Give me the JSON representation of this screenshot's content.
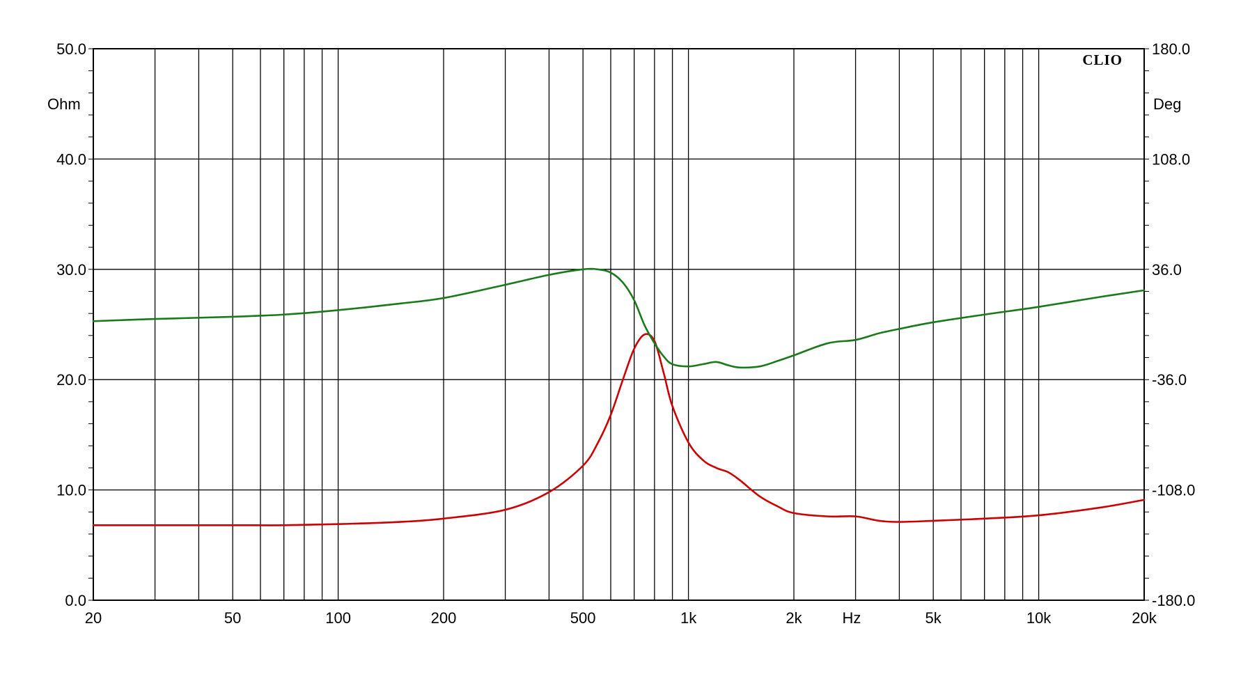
{
  "chart_data": {
    "type": "line",
    "brand": "CLIO",
    "x_scale": "log",
    "xlim": [
      20,
      20000
    ],
    "ylim_left": [
      0,
      50
    ],
    "ylim_right": [
      -180,
      180
    ],
    "left_unit": "Ohm",
    "right_unit": "Deg",
    "x_unit": "Hz",
    "grid": true,
    "x_ticks": [
      {
        "value": 20,
        "label": "20"
      },
      {
        "value": 50,
        "label": "50"
      },
      {
        "value": 100,
        "label": "100"
      },
      {
        "value": 200,
        "label": "200"
      },
      {
        "value": 500,
        "label": "500"
      },
      {
        "value": 1000,
        "label": "1k"
      },
      {
        "value": 2000,
        "label": "2k"
      },
      {
        "value": 5000,
        "label": "5k"
      },
      {
        "value": 10000,
        "label": "10k"
      },
      {
        "value": 20000,
        "label": "20k"
      }
    ],
    "left_ticks": [
      {
        "value": 0,
        "label": "0.0"
      },
      {
        "value": 10,
        "label": "10.0"
      },
      {
        "value": 20,
        "label": "20.0"
      },
      {
        "value": 30,
        "label": "30.0"
      },
      {
        "value": 40,
        "label": "40.0"
      },
      {
        "value": 50,
        "label": "50.0"
      }
    ],
    "right_ticks": [
      {
        "value": -180,
        "label": "-180.0"
      },
      {
        "value": -108,
        "label": "-108.0"
      },
      {
        "value": -36,
        "label": "-36.0"
      },
      {
        "value": 36,
        "label": "36.0"
      },
      {
        "value": 108,
        "label": "108.0"
      },
      {
        "value": 180,
        "label": "180.0"
      }
    ],
    "series": [
      {
        "axis": "left",
        "color": "#cc0000",
        "x": [
          20,
          30,
          50,
          70,
          100,
          150,
          200,
          300,
          400,
          500,
          550,
          600,
          650,
          700,
          750,
          800,
          850,
          900,
          1000,
          1100,
          1200,
          1300,
          1400,
          1600,
          1800,
          2000,
          2500,
          3000,
          3500,
          4000,
          5000,
          7000,
          10000,
          15000,
          20000
        ],
        "y": [
          6.8,
          6.8,
          6.8,
          6.8,
          6.9,
          7.1,
          7.4,
          8.2,
          9.8,
          12.2,
          14.2,
          16.8,
          20.0,
          22.8,
          24.1,
          23.5,
          20.6,
          17.6,
          14.3,
          12.7,
          12.0,
          11.6,
          10.9,
          9.4,
          8.5,
          7.9,
          7.6,
          7.6,
          7.2,
          7.1,
          7.2,
          7.4,
          7.7,
          8.4,
          9.1
        ]
      },
      {
        "axis": "left",
        "color": "#1a7a1a",
        "x": [
          20,
          30,
          50,
          70,
          100,
          150,
          200,
          300,
          400,
          500,
          550,
          600,
          650,
          700,
          750,
          800,
          850,
          900,
          1000,
          1100,
          1200,
          1300,
          1400,
          1600,
          1800,
          2000,
          2500,
          3000,
          3500,
          4000,
          5000,
          7000,
          10000,
          15000,
          20000
        ],
        "y": [
          25.3,
          25.5,
          25.7,
          25.9,
          26.3,
          26.9,
          27.4,
          28.6,
          29.5,
          30.0,
          30.0,
          29.7,
          28.8,
          27.2,
          24.9,
          23.3,
          22.1,
          21.4,
          21.2,
          21.4,
          21.6,
          21.3,
          21.1,
          21.2,
          21.7,
          22.2,
          23.3,
          23.6,
          24.2,
          24.6,
          25.2,
          25.9,
          26.6,
          27.5,
          28.1
        ]
      }
    ]
  }
}
